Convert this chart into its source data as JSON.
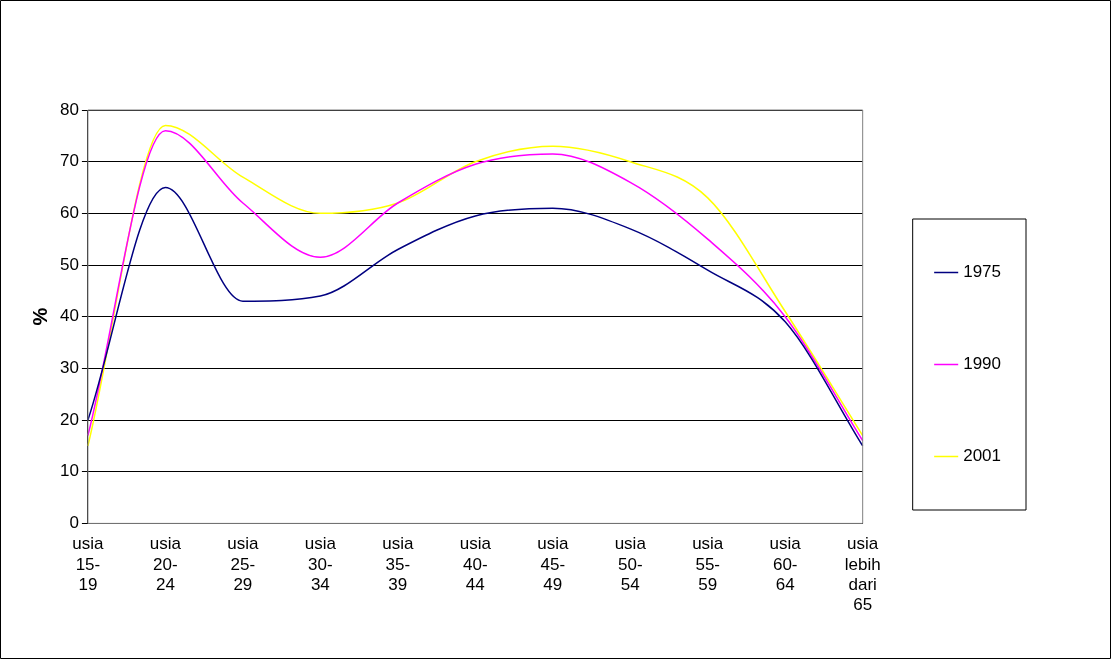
{
  "chart_data": {
    "type": "line",
    "ylabel": "%",
    "categories": [
      "usia 15-19",
      "usia 20-24",
      "usia 25-29",
      "usia 30-34",
      "usia 35-39",
      "usia 40-44",
      "usia 45-49",
      "usia 50-54",
      "usia 55-59",
      "usia 60-64",
      "usia lebih dari 65"
    ],
    "series": [
      {
        "name": "1975",
        "color": "#000080",
        "values": [
          20,
          65,
          43,
          44,
          53,
          59.5,
          61,
          57,
          49,
          39,
          15
        ]
      },
      {
        "name": "1990",
        "color": "#ff00ff",
        "values": [
          17,
          76,
          62,
          51.5,
          62,
          69.5,
          71.5,
          66,
          55,
          40,
          16
        ]
      },
      {
        "name": "2001",
        "color": "#ffff00",
        "values": [
          15,
          77,
          67,
          60,
          62,
          70,
          73,
          70,
          63,
          41,
          17
        ]
      }
    ],
    "ylim": [
      0,
      80
    ],
    "yticks": [
      0,
      10,
      20,
      30,
      40,
      50,
      60,
      70,
      80
    ],
    "grid": "y",
    "legend": "right",
    "marker": "none",
    "line_style": "solid"
  }
}
